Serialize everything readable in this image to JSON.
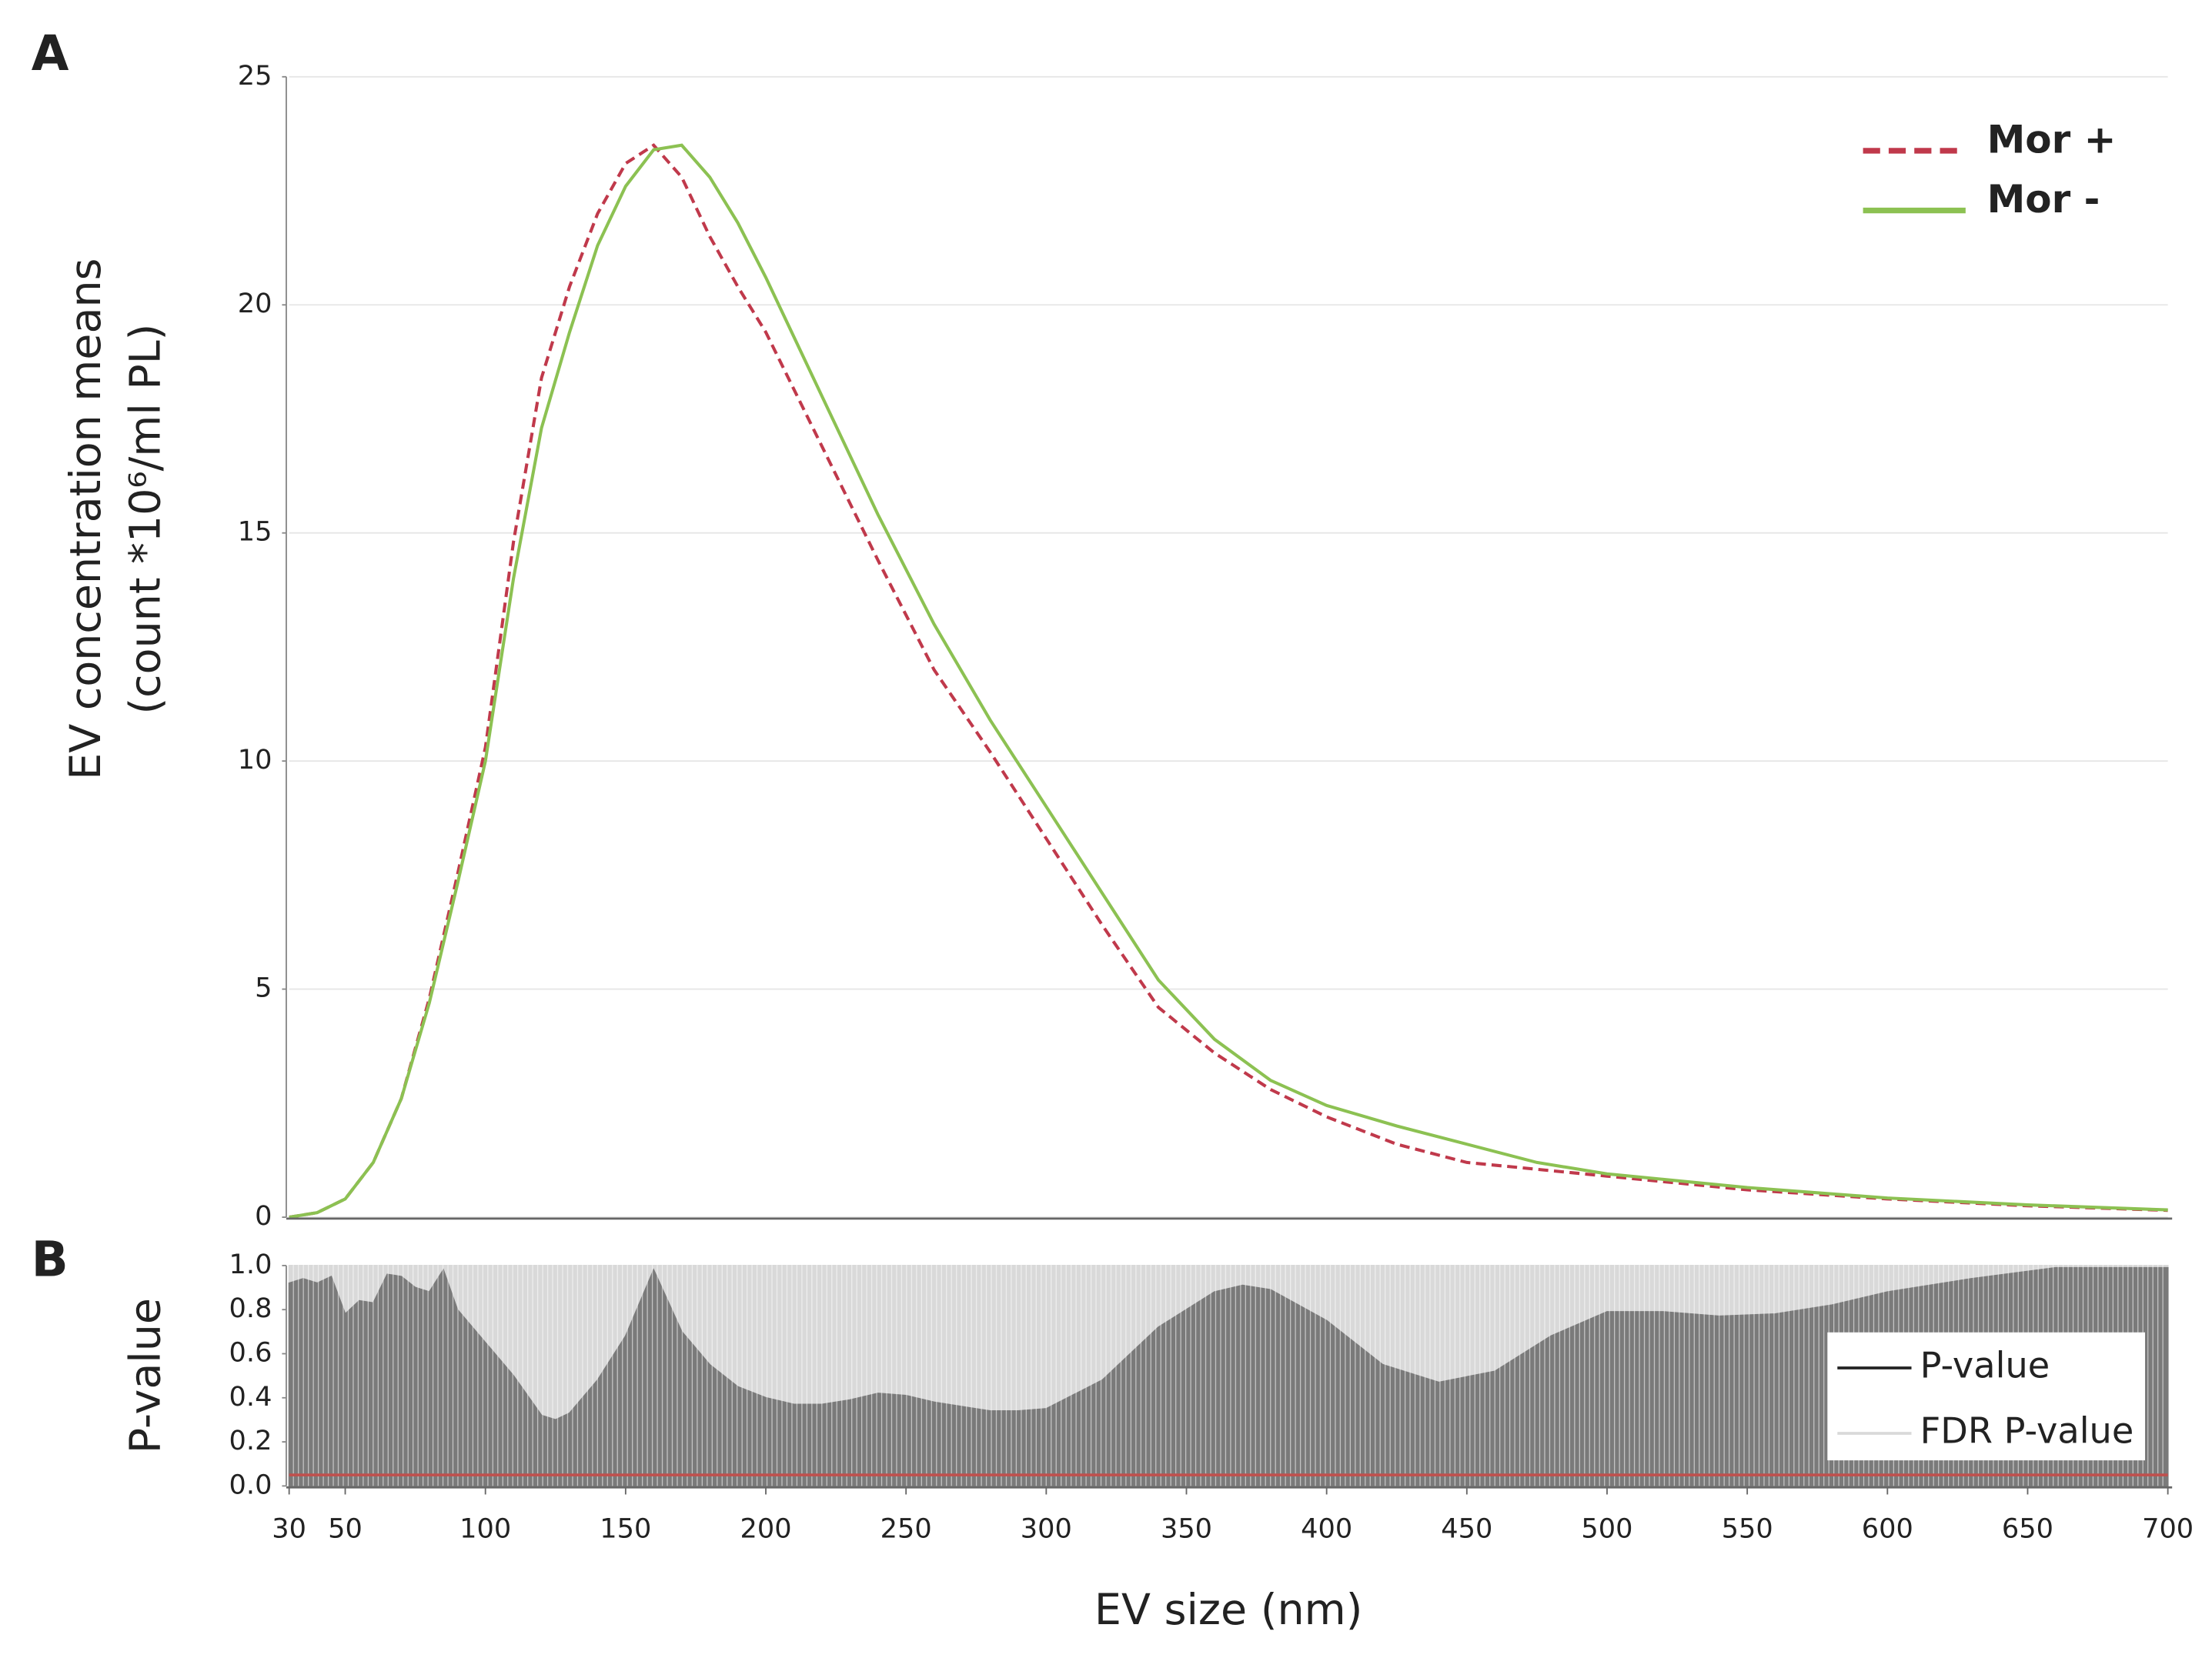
{
  "chart_data": [
    {
      "type": "line",
      "panel_label": "A",
      "ylabel_lines": [
        "EV concentration means",
        "(count *10⁶/ml PL)"
      ],
      "x": [
        30,
        40,
        50,
        60,
        70,
        80,
        90,
        100,
        110,
        120,
        130,
        140,
        150,
        160,
        170,
        180,
        190,
        200,
        220,
        240,
        260,
        280,
        300,
        320,
        340,
        360,
        380,
        400,
        425,
        450,
        475,
        500,
        550,
        600,
        650,
        700
      ],
      "series": [
        {
          "name": "Mor +",
          "color": "#c0394b",
          "dashed": true,
          "values": [
            0,
            0.1,
            0.4,
            1.2,
            2.6,
            4.8,
            7.5,
            10.3,
            14.8,
            18.4,
            20.4,
            22.0,
            23.1,
            23.5,
            22.8,
            21.5,
            20.4,
            19.4,
            16.9,
            14.4,
            12.0,
            10.2,
            8.3,
            6.4,
            4.6,
            3.6,
            2.8,
            2.2,
            1.6,
            1.2,
            1.05,
            0.9,
            0.6,
            0.4,
            0.25,
            0.15
          ]
        },
        {
          "name": "Mor -",
          "color": "#8cc152",
          "dashed": false,
          "values": [
            0,
            0.1,
            0.4,
            1.2,
            2.6,
            4.7,
            7.3,
            10.0,
            14.0,
            17.3,
            19.4,
            21.3,
            22.6,
            23.4,
            23.5,
            22.8,
            21.8,
            20.6,
            18.0,
            15.4,
            13.0,
            10.9,
            9.0,
            7.1,
            5.2,
            3.9,
            3.0,
            2.45,
            2.0,
            1.6,
            1.2,
            0.95,
            0.65,
            0.42,
            0.27,
            0.16
          ]
        }
      ],
      "xlim": [
        30,
        700
      ],
      "ylim": [
        0,
        25
      ],
      "yticks": [
        0,
        5,
        10,
        15,
        20,
        25
      ],
      "grid": true,
      "legend": "upper right"
    },
    {
      "type": "area",
      "panel_label": "B",
      "ylabel": "P-value",
      "xlabel": "EV size (nm)",
      "x": [
        30,
        35,
        40,
        45,
        50,
        55,
        60,
        65,
        70,
        75,
        80,
        85,
        90,
        100,
        110,
        120,
        125,
        130,
        140,
        150,
        160,
        170,
        180,
        190,
        200,
        210,
        220,
        230,
        240,
        250,
        260,
        270,
        280,
        290,
        300,
        320,
        340,
        360,
        370,
        380,
        400,
        420,
        440,
        460,
        480,
        500,
        520,
        540,
        560,
        580,
        600,
        630,
        660,
        700
      ],
      "series": [
        {
          "name": "FDR P-value",
          "color": "#d9d9d9",
          "values": [
            1,
            1,
            1,
            1,
            1,
            1,
            1,
            1,
            1,
            1,
            1,
            1,
            1,
            1,
            1,
            1,
            1,
            1,
            1,
            1,
            1,
            1,
            1,
            1,
            1,
            1,
            1,
            1,
            1,
            1,
            1,
            1,
            1,
            1,
            1,
            1,
            1,
            1,
            1,
            1,
            1,
            1,
            1,
            1,
            1,
            1,
            1,
            1,
            1,
            1,
            1,
            1,
            1,
            1
          ]
        },
        {
          "name": "P-value",
          "color": "#7a7a7a",
          "legend_color": "#222222",
          "values": [
            0.92,
            0.94,
            0.92,
            0.95,
            0.78,
            0.84,
            0.83,
            0.96,
            0.95,
            0.9,
            0.88,
            0.98,
            0.8,
            0.65,
            0.5,
            0.32,
            0.3,
            0.33,
            0.48,
            0.68,
            0.98,
            0.7,
            0.55,
            0.45,
            0.4,
            0.37,
            0.37,
            0.39,
            0.42,
            0.41,
            0.38,
            0.36,
            0.34,
            0.34,
            0.35,
            0.48,
            0.72,
            0.88,
            0.91,
            0.89,
            0.75,
            0.55,
            0.47,
            0.52,
            0.68,
            0.79,
            0.79,
            0.77,
            0.78,
            0.82,
            0.88,
            0.94,
            0.99,
            0.99
          ]
        }
      ],
      "threshold": {
        "value": 0.05,
        "color": "#c0504d"
      },
      "xlim": [
        30,
        700
      ],
      "xticks": [
        30,
        50,
        100,
        150,
        200,
        250,
        300,
        350,
        400,
        450,
        500,
        550,
        600,
        650,
        700
      ],
      "ylim": [
        0,
        1
      ],
      "yticks": [
        {
          "value": 0,
          "label": "0.0"
        },
        0.2,
        0.4,
        0.6,
        0.8,
        {
          "value": 1,
          "label": "1.0"
        }
      ],
      "legend": "lower right"
    }
  ]
}
